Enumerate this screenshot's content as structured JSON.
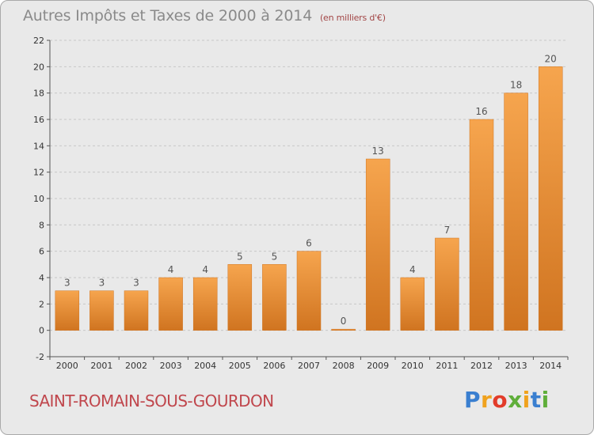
{
  "header": {
    "title": "Autres Impôts et Taxes de 2000 à 2014",
    "unit": "(en milliers d'€)"
  },
  "footer": {
    "commune": "SAINT-ROMAIN-SOUS-GOURDON",
    "logo_letters": [
      "P",
      "r",
      "o",
      "x",
      "i",
      "t",
      "i"
    ],
    "logo_colors": [
      "#3a7fd0",
      "#f0a21e",
      "#e23c2a",
      "#5fae3a",
      "#f0a21e",
      "#3a7fd0",
      "#5fae3a"
    ]
  },
  "colors": {
    "bar_light": "#f6a54e",
    "bar_dark": "#d07420",
    "background": "#e9e9e9",
    "grid": "#c8c8c8"
  },
  "chart_data": {
    "type": "bar",
    "categories": [
      "2000",
      "2001",
      "2002",
      "2003",
      "2004",
      "2005",
      "2006",
      "2007",
      "2008",
      "2009",
      "2010",
      "2011",
      "2012",
      "2013",
      "2014"
    ],
    "values": [
      3,
      3,
      3,
      4,
      4,
      5,
      5,
      6,
      0,
      13,
      4,
      7,
      16,
      18,
      20
    ],
    "ylim": [
      -2,
      22
    ],
    "yticks": [
      -2,
      0,
      2,
      4,
      6,
      8,
      10,
      12,
      14,
      16,
      18,
      20,
      22
    ],
    "grid": true,
    "legend": "none"
  }
}
